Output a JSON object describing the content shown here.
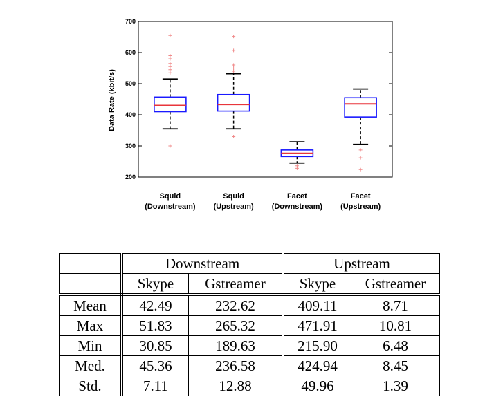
{
  "chart_data": {
    "type": "boxplot",
    "ylabel": "Data Rate (kbit/s)",
    "ylim": [
      200,
      700
    ],
    "yticks": [
      200,
      300,
      400,
      500,
      600,
      700
    ],
    "categories": [
      {
        "line1": "Squid",
        "line2": "(Downstream)"
      },
      {
        "line1": "Squid",
        "line2": "(Upstream)"
      },
      {
        "line1": "Facet",
        "line2": "(Downstream)"
      },
      {
        "line1": "Facet",
        "line2": "(Upstream)"
      }
    ],
    "boxes": [
      {
        "whisker_low": 355,
        "q1": 410,
        "median": 430,
        "q3": 457,
        "whisker_high": 515,
        "outliers": [
          655,
          590,
          580,
          565,
          555,
          545,
          535,
          300
        ]
      },
      {
        "whisker_low": 355,
        "q1": 412,
        "median": 433,
        "q3": 465,
        "whisker_high": 532,
        "outliers": [
          652,
          607,
          560,
          550,
          540,
          330
        ]
      },
      {
        "whisker_low": 245,
        "q1": 266,
        "median": 276,
        "q3": 287,
        "whisker_high": 313,
        "outliers": [
          236,
          228
        ]
      },
      {
        "whisker_low": 305,
        "q1": 393,
        "median": 435,
        "q3": 455,
        "whisker_high": 483,
        "outliers": [
          287,
          262,
          224
        ]
      }
    ],
    "colors": {
      "box": "#1a1aff",
      "median": "#e8353b",
      "outlier": "#f08a8a",
      "whisker": "#000000",
      "frame": "#000000"
    }
  },
  "table": {
    "group_headers": [
      "Downstream",
      "Upstream"
    ],
    "sub_headers": [
      "Skype",
      "Gstreamer",
      "Skype",
      "Gstreamer"
    ],
    "rows": [
      {
        "label": "Mean",
        "values": [
          "42.49",
          "232.62",
          "409.11",
          "8.71"
        ]
      },
      {
        "label": "Max",
        "values": [
          "51.83",
          "265.32",
          "471.91",
          "10.81"
        ]
      },
      {
        "label": "Min",
        "values": [
          "30.85",
          "189.63",
          "215.90",
          "6.48"
        ]
      },
      {
        "label": "Med.",
        "values": [
          "45.36",
          "236.58",
          "424.94",
          "8.45"
        ]
      },
      {
        "label": "Std.",
        "values": [
          "7.11",
          "12.88",
          "49.96",
          "1.39"
        ]
      }
    ]
  }
}
